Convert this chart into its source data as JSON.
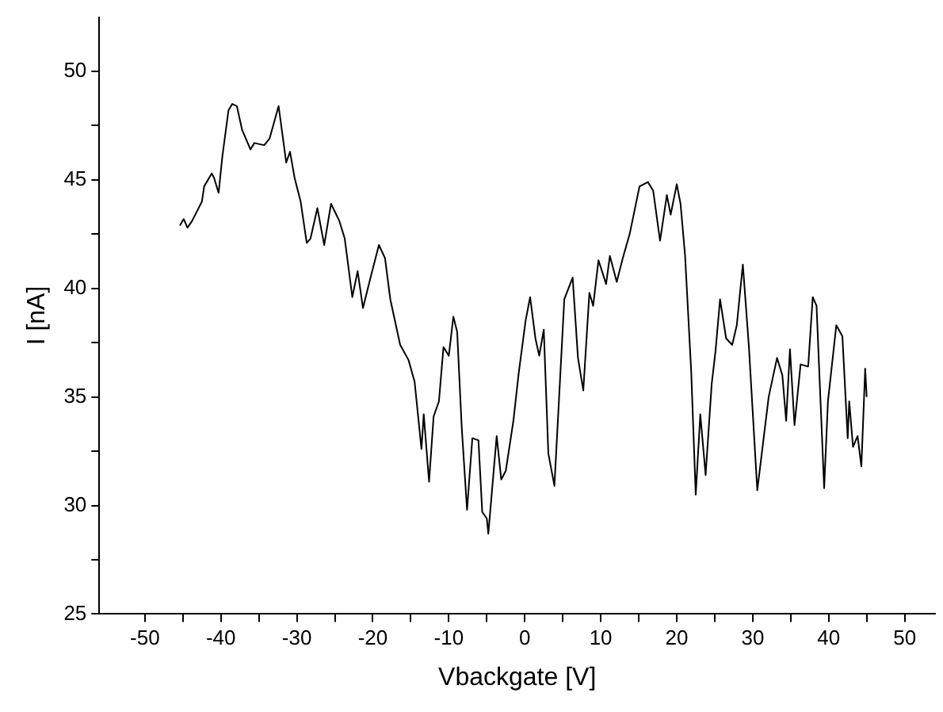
{
  "chart_data": {
    "type": "line",
    "xlabel": "Vbackgate [V]",
    "ylabel": "I [nA]",
    "color": "#000000",
    "marker": "none",
    "line_style": "solid",
    "grid": false,
    "legend": false,
    "xlim": [
      -56,
      54
    ],
    "ylim": [
      25,
      52.5
    ],
    "xticks": [
      -50,
      {
        "value": -45,
        "label": null
      },
      -40,
      {
        "value": -35,
        "label": null
      },
      -30,
      {
        "value": -25,
        "label": null
      },
      -20,
      {
        "value": -15,
        "label": null
      },
      -10,
      {
        "value": -5,
        "label": null
      },
      0,
      {
        "value": 5,
        "label": null
      },
      10,
      {
        "value": 15,
        "label": null
      },
      20,
      {
        "value": 25,
        "label": null
      },
      30,
      {
        "value": 35,
        "label": null
      },
      40,
      {
        "value": 45,
        "label": null
      },
      50
    ],
    "yticks": [
      25,
      {
        "value": 27.5,
        "label": null
      },
      30,
      {
        "value": 32.5,
        "label": null
      },
      35,
      {
        "value": 37.5,
        "label": null
      },
      40,
      {
        "value": 42.5,
        "label": null
      },
      45,
      {
        "value": 47.5,
        "label": null
      },
      50
    ],
    "x": [
      -45.4,
      -44.9,
      -44.4,
      -43.8,
      -42.5,
      -42.2,
      -41.2,
      -40.9,
      -40.3,
      -39.8,
      -39.0,
      -38.5,
      -37.9,
      -37.2,
      -36.1,
      -35.6,
      -34.3,
      -33.6,
      -32.8,
      -32.4,
      -31.9,
      -31.4,
      -30.9,
      -30.3,
      -29.5,
      -28.7,
      -28.2,
      -27.3,
      -26.4,
      -25.5,
      -24.4,
      -23.7,
      -22.7,
      -22.0,
      -21.3,
      -20.3,
      -19.2,
      -18.4,
      -17.7,
      -16.4,
      -15.3,
      -14.5,
      -13.6,
      -13.3,
      -12.6,
      -12.0,
      -11.3,
      -10.7,
      -10.0,
      -9.4,
      -8.9,
      -8.3,
      -7.6,
      -6.9,
      -6.1,
      -5.6,
      -5.0,
      -4.8,
      -3.7,
      -3.1,
      -2.5,
      -1.5,
      -0.8,
      0.1,
      0.7,
      1.4,
      1.9,
      2.5,
      3.1,
      3.9,
      5.2,
      6.3,
      7.0,
      7.7,
      8.5,
      9.0,
      9.7,
      10.7,
      11.2,
      12.1,
      12.9,
      13.8,
      15.1,
      16.2,
      16.9,
      17.8,
      18.7,
      19.2,
      20.0,
      20.5,
      21.1,
      21.9,
      22.5,
      23.1,
      23.8,
      24.6,
      25.1,
      25.7,
      26.5,
      27.3,
      27.9,
      28.7,
      29.5,
      30.6,
      32.1,
      33.2,
      33.9,
      34.4,
      34.9,
      35.5,
      36.3,
      37.3,
      37.9,
      38.4,
      39.4,
      39.9,
      41.0,
      41.8,
      42.5,
      42.7,
      43.2,
      43.8,
      44.3,
      44.8,
      45.0
    ],
    "values": [
      42.9,
      43.2,
      42.8,
      43.1,
      44.0,
      44.7,
      45.3,
      45.1,
      44.4,
      46.1,
      48.2,
      48.5,
      48.4,
      47.3,
      46.4,
      46.7,
      46.6,
      46.9,
      47.9,
      48.4,
      47.1,
      45.8,
      46.3,
      45.1,
      44.0,
      42.1,
      42.3,
      43.7,
      42.0,
      43.9,
      43.1,
      42.3,
      39.6,
      40.8,
      39.1,
      40.5,
      42.0,
      41.4,
      39.5,
      37.4,
      36.7,
      35.7,
      32.6,
      34.2,
      31.1,
      34.1,
      34.8,
      37.3,
      36.9,
      38.7,
      38.0,
      33.6,
      29.8,
      33.1,
      33.0,
      29.7,
      29.4,
      28.7,
      33.2,
      31.2,
      31.6,
      33.9,
      36.1,
      38.5,
      39.6,
      37.7,
      36.9,
      38.1,
      32.4,
      30.9,
      39.5,
      40.5,
      36.8,
      35.3,
      39.8,
      39.2,
      41.3,
      40.2,
      41.5,
      40.3,
      41.4,
      42.5,
      44.7,
      44.9,
      44.5,
      42.2,
      44.3,
      43.4,
      44.8,
      43.9,
      41.5,
      36.2,
      30.5,
      34.2,
      31.4,
      35.6,
      37.1,
      39.5,
      37.7,
      37.4,
      38.3,
      41.1,
      37.3,
      30.7,
      35.0,
      36.8,
      36.0,
      33.9,
      37.2,
      33.7,
      36.5,
      36.4,
      39.6,
      39.2,
      30.8,
      34.8,
      38.3,
      37.8,
      33.1,
      34.8,
      32.7,
      33.2,
      31.8,
      36.3,
      35.0
    ]
  }
}
